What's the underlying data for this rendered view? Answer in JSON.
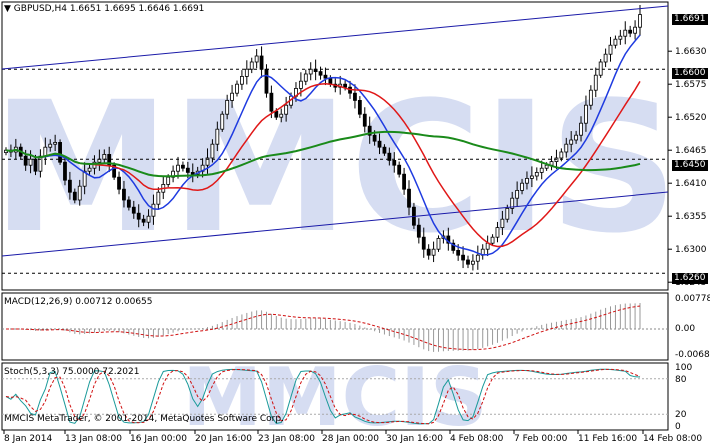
{
  "window": {
    "title": "GBPUSD,H4",
    "ohlc": "1.6651 1.6695 1.6646 1.6691",
    "copyright": "MMCIS MetaTrader, © 2001-2014, MetaQuotes Software Corp.",
    "watermark": "MMCIS"
  },
  "price_scale": {
    "labels": [
      "1.6630",
      "1.6575",
      "1.6520",
      "1.6465",
      "1.6410",
      "1.6355",
      "1.6300",
      "1.6245"
    ],
    "current_price": "1.6691",
    "level_1": "1.6600",
    "level_2": "1.6450",
    "level_3": "1.6260"
  },
  "macd": {
    "title": "MACD(12,26,9) 0.00712 0.00655",
    "scale": [
      "0.00778",
      "0.00",
      "-0.00684"
    ]
  },
  "stoch": {
    "title": "Stoch(5,3,3) 75.0000 72.2021",
    "scale": [
      "100",
      "80",
      "20",
      "0"
    ]
  },
  "time_axis": [
    "8 Jan 2014",
    "13 Jan 08:00",
    "16 Jan 00:00",
    "20 Jan 16:00",
    "23 Jan 08:00",
    "28 Jan 00:00",
    "30 Jan 16:00",
    "4 Feb 08:00",
    "7 Feb 00:00",
    "11 Feb 16:00",
    "14 Feb 08:00"
  ],
  "colors": {
    "ma_fast": "#1f3be0",
    "ma_mid": "#e01818",
    "ma_slow": "#1a8a1a",
    "channel": "#1a1aa8",
    "watermark": "#c9d2ee"
  },
  "chart_data": {
    "type": "candlestick",
    "symbol": "GBPUSD",
    "timeframe": "H4",
    "ylim": [
      1.6232,
      1.6712
    ],
    "close": [
      1.6465,
      1.6462,
      1.647,
      1.6455,
      1.644,
      1.645,
      1.643,
      1.6455,
      1.647,
      1.6475,
      1.6478,
      1.6445,
      1.6415,
      1.6395,
      1.6382,
      1.6405,
      1.643,
      1.6435,
      1.6445,
      1.645,
      1.6458,
      1.644,
      1.642,
      1.64,
      1.6382,
      1.637,
      1.636,
      1.635,
      1.6345,
      1.6355,
      1.6375,
      1.6395,
      1.6408,
      1.642,
      1.643,
      1.644,
      1.6435,
      1.6428,
      1.6425,
      1.643,
      1.644,
      1.6452,
      1.6475,
      1.65,
      1.6525,
      1.6548,
      1.656,
      1.6575,
      1.6588,
      1.66,
      1.6612,
      1.6622,
      1.66,
      1.656,
      1.653,
      1.652,
      1.6525,
      1.654,
      1.6555,
      1.6568,
      1.658,
      1.6592,
      1.66,
      1.6596,
      1.659,
      1.6585,
      1.6575,
      1.657,
      1.6575,
      1.657,
      1.656,
      1.6548,
      1.6525,
      1.6505,
      1.649,
      1.648,
      1.647,
      1.646,
      1.6448,
      1.644,
      1.6425,
      1.64,
      1.637,
      1.634,
      1.632,
      1.63,
      1.629,
      1.63,
      1.6318,
      1.6322,
      1.631,
      1.6298,
      1.629,
      1.6282,
      1.6275,
      1.628,
      1.629,
      1.63,
      1.631,
      1.632,
      1.6336,
      1.635,
      1.6368,
      1.6385,
      1.6398,
      1.641,
      1.6418,
      1.6422,
      1.6428,
      1.6435,
      1.644,
      1.6446,
      1.6452,
      1.6462,
      1.6475,
      1.6482,
      1.649,
      1.651,
      1.654,
      1.6565,
      1.659,
      1.6612,
      1.6625,
      1.664,
      1.665,
      1.6655,
      1.6665,
      1.666,
      1.667,
      1.6691
    ]
  }
}
